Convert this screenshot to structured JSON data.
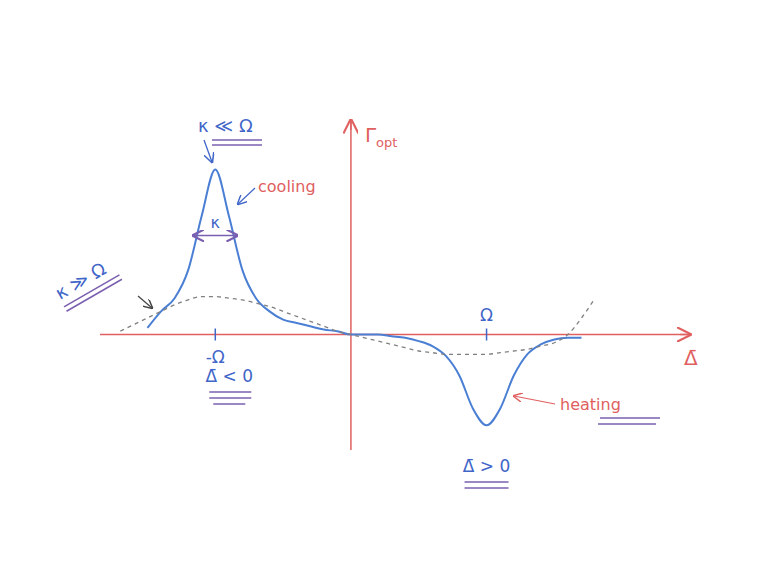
{
  "chart_data": {
    "type": "line",
    "x_label": "Δ̄",
    "y_label": "Γopt",
    "x": [
      -1.7,
      -1.6,
      -1.5,
      -1.4,
      -1.3,
      -1.2,
      -1.1,
      -1.0,
      -0.9,
      -0.8,
      -0.7,
      -0.6,
      -0.5,
      -0.4,
      -0.3,
      -0.2,
      -0.1,
      0,
      0.1,
      0.2,
      0.3,
      0.4,
      0.5,
      0.6,
      0.7,
      0.8,
      0.9,
      1.0,
      1.1,
      1.2,
      1.3,
      1.4,
      1.5,
      1.6,
      1.7,
      1.8
    ],
    "xlim": [
      -1.85,
      2.5
    ],
    "ylim": [
      -0.7,
      1.3
    ],
    "xticks": [
      {
        "value": -1,
        "label": "-Ω"
      },
      {
        "value": 1,
        "label": "Ω"
      }
    ],
    "yticks": [],
    "tick_labels": "x",
    "grid": false,
    "series": [
      {
        "name": "κ ≪ Ω",
        "color": "#4a7fd4",
        "line_style": "solid",
        "values": [
          null,
          null,
          0.04,
          0.14,
          0.22,
          0.39,
          0.72,
          1.0,
          0.72,
          0.39,
          0.22,
          0.14,
          0.09,
          0.07,
          0.05,
          0.03,
          0.02,
          0.0,
          0.0,
          0.0,
          -0.01,
          -0.02,
          -0.04,
          -0.07,
          -0.13,
          -0.25,
          -0.45,
          -0.55,
          -0.45,
          -0.25,
          -0.12,
          -0.06,
          -0.03,
          -0.02,
          -0.02,
          null
        ]
      },
      {
        "name": "κ ≫ Ω",
        "color": "#808080",
        "line_style": "dashed",
        "values": [
          0.02,
          0.06,
          0.1,
          0.14,
          0.18,
          0.21,
          0.23,
          0.23,
          0.22,
          0.21,
          0.19,
          0.17,
          0.14,
          0.11,
          0.08,
          0.05,
          0.02,
          0,
          -0.02,
          -0.04,
          -0.06,
          -0.08,
          -0.1,
          -0.11,
          -0.12,
          -0.12,
          -0.12,
          -0.12,
          -0.11,
          -0.1,
          -0.09,
          -0.07,
          -0.05,
          0.0,
          0.1,
          0.22
        ]
      }
    ],
    "annotations": [
      "cooling",
      "heating",
      "κ",
      "Δ̄ < 0",
      "Δ̄ > 0"
    ]
  }
}
